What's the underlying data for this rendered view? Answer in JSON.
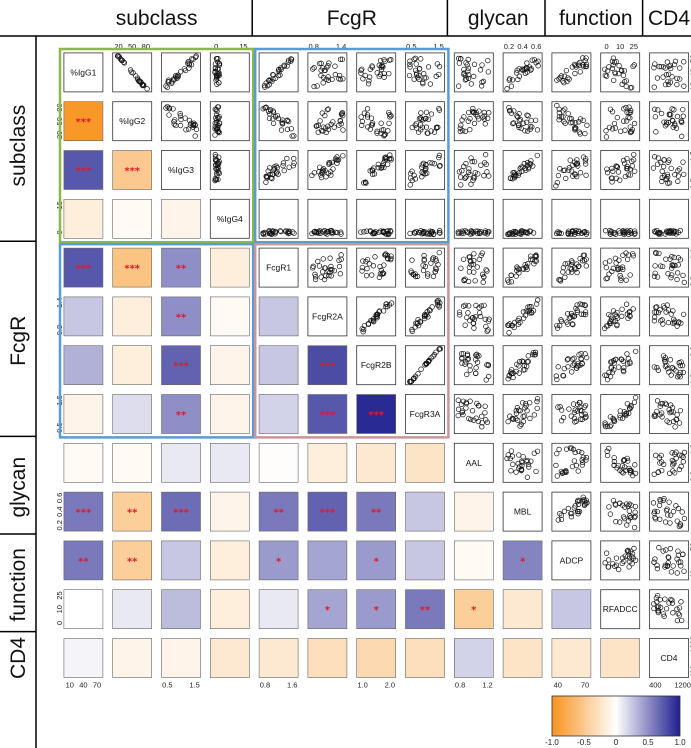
{
  "chart_data": {
    "type": "heatmap",
    "description_note": "",
    "variables": [
      "%IgG1",
      "%IgG2",
      "%IgG3",
      "%IgG4",
      "FcgR1",
      "FcgR2A",
      "FcgR2B",
      "FcgR3A",
      "AAL",
      "MBL",
      "ADCP",
      "RFADCC",
      "CD4"
    ],
    "groups": [
      {
        "label": "subclass",
        "vars": [
          0,
          1,
          2,
          3
        ]
      },
      {
        "label": "FcgR",
        "vars": [
          4,
          5,
          6,
          7
        ]
      },
      {
        "label": "glycan",
        "vars": [
          8,
          9
        ]
      },
      {
        "label": "function",
        "vars": [
          10,
          11
        ]
      },
      {
        "label": "CD4",
        "vars": [
          12
        ]
      }
    ],
    "lower_triangle_correlations": [
      [],
      [
        -0.95
      ],
      [
        0.75,
        -0.5
      ],
      [
        -0.15,
        -0.05,
        -0.1
      ],
      [
        0.75,
        -0.55,
        0.5,
        -0.15
      ],
      [
        0.25,
        -0.15,
        0.5,
        -0.05,
        0.25
      ],
      [
        0.35,
        -0.15,
        0.7,
        -0.1,
        0.25,
        0.8
      ],
      [
        -0.1,
        0.15,
        0.5,
        -0.1,
        0.2,
        0.75,
        0.95
      ],
      [
        -0.05,
        -0.05,
        0.1,
        0.1,
        -0.02,
        -0.15,
        -0.2,
        -0.25
      ],
      [
        0.6,
        -0.45,
        0.65,
        -0.1,
        0.6,
        0.7,
        0.6,
        0.25,
        -0.1
      ],
      [
        0.6,
        -0.45,
        0.25,
        -0.15,
        0.45,
        0.4,
        0.45,
        0.25,
        -0.05,
        0.55
      ],
      [
        0.0,
        0.1,
        0.3,
        -0.15,
        0.1,
        0.4,
        0.45,
        0.6,
        -0.45,
        -0.2,
        0.25
      ],
      [
        0.05,
        -0.1,
        -0.1,
        -0.2,
        -0.2,
        -0.3,
        -0.35,
        -0.3,
        0.2,
        -0.25,
        -0.2,
        -0.25
      ]
    ],
    "significance_stars": [
      [],
      [
        "***"
      ],
      [
        "***",
        "***"
      ],
      [
        "",
        "",
        ""
      ],
      [
        "***",
        "***",
        "**",
        ""
      ],
      [
        "",
        "",
        "**",
        "",
        ""
      ],
      [
        "",
        "",
        "***",
        "",
        "",
        "***"
      ],
      [
        "",
        "",
        "**",
        "",
        "",
        "***",
        "***"
      ],
      [
        "",
        "",
        "",
        "",
        "",
        "",
        "",
        ""
      ],
      [
        "***",
        "**",
        "***",
        "",
        "**",
        "***",
        "**",
        "",
        ""
      ],
      [
        "**",
        "**",
        "",
        "",
        "*",
        "",
        "*",
        "",
        "",
        "*"
      ],
      [
        "",
        "",
        "",
        "",
        "",
        "*",
        "*",
        "**",
        "*",
        "",
        ""
      ],
      [
        "",
        "",
        "",
        "",
        "",
        "",
        "",
        "",
        "",
        "",
        "",
        ""
      ]
    ],
    "scatter_y_axis_labels": {
      "%IgG1": [
        "10",
        "40",
        "70"
      ],
      "%IgG2": [
        "20",
        "50",
        "80"
      ],
      "%IgG3": [
        "0.5",
        "1.5"
      ],
      "%IgG4": [
        "0",
        "15"
      ],
      "FcgR1": [
        "0.8",
        "1.6"
      ],
      "FcgR2A": [
        "0.8",
        "1.4"
      ],
      "FcgR2B": [
        "1.0",
        "2.0"
      ],
      "FcgR3A": [
        "0.5",
        "1.5"
      ],
      "AAL": [
        "0.8",
        "1.2"
      ],
      "MBL": [
        "0.2",
        "0.4",
        "0.6"
      ],
      "ADCP": [
        "40",
        "70"
      ],
      "RFADCC": [
        "0",
        "10",
        "25"
      ],
      "CD4": [
        "400",
        "1200"
      ]
    },
    "colorbar": {
      "ticks": [
        "-1.0",
        "-0.5",
        "0",
        "0.5",
        "1.0"
      ],
      "range": [
        -1,
        1
      ],
      "low_color": "#f7931e",
      "mid_color": "#ffffff",
      "high_color": "#1f1f8f"
    },
    "group_box_colors": {
      "subclass": "#8cb84a",
      "FcgR": "#5b9bd5",
      "FcgR-FcgR": "#c9959a"
    }
  }
}
